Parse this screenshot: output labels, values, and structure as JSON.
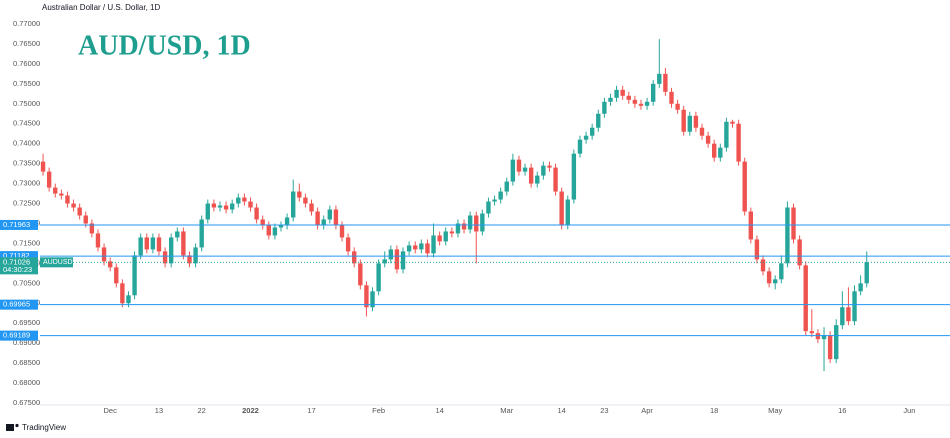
{
  "chart_data": {
    "type": "candlestick",
    "title": "Australian Dollar / U.S. Dollar, 1D",
    "annotation": "AUD/USD, 1D",
    "footer": "TradingView",
    "up_color": "#26a69a",
    "down_color": "#ef5350",
    "level_color": "#2196f3",
    "ylim": [
      0.675,
      0.77
    ],
    "yticks": [
      {
        "value": 0.675,
        "label": "0.67500"
      },
      {
        "value": 0.68,
        "label": "0.68000"
      },
      {
        "value": 0.685,
        "label": "0.68500"
      },
      {
        "value": 0.69,
        "label": "0.69000"
      },
      {
        "value": 0.695,
        "label": "0.69500"
      },
      {
        "value": 0.7,
        "label": "0.70000"
      },
      {
        "value": 0.705,
        "label": "0.70500"
      },
      {
        "value": 0.71,
        "label": "0.71000"
      },
      {
        "value": 0.715,
        "label": "0.71500"
      },
      {
        "value": 0.72,
        "label": "0.72000"
      },
      {
        "value": 0.725,
        "label": "0.72500"
      },
      {
        "value": 0.73,
        "label": "0.73000"
      },
      {
        "value": 0.735,
        "label": "0.73500"
      },
      {
        "value": 0.74,
        "label": "0.74000"
      },
      {
        "value": 0.745,
        "label": "0.74500"
      },
      {
        "value": 0.75,
        "label": "0.75000"
      },
      {
        "value": 0.755,
        "label": "0.75500"
      },
      {
        "value": 0.76,
        "label": "0.76000"
      },
      {
        "value": 0.765,
        "label": "0.76500"
      },
      {
        "value": 0.77,
        "label": "0.77000"
      }
    ],
    "levels": [
      {
        "value": 0.71963,
        "label": "0.71963"
      },
      {
        "value": 0.71182,
        "label": "0.71182"
      },
      {
        "value": 0.69965,
        "label": "0.69965"
      },
      {
        "value": 0.69189,
        "label": "0.69189"
      }
    ],
    "last_price": {
      "value": 0.71026,
      "label": "0.71026"
    },
    "symbol": "AUDUSD",
    "countdown": "04:30:23",
    "categories": [
      null,
      null,
      null,
      null,
      null,
      null,
      null,
      null,
      null,
      null,
      null,
      "Dec",
      null,
      null,
      null,
      null,
      null,
      null,
      null,
      "13",
      null,
      null,
      null,
      null,
      null,
      null,
      "22",
      null,
      null,
      null,
      null,
      null,
      null,
      null,
      "2022",
      null,
      null,
      null,
      null,
      null,
      null,
      null,
      null,
      null,
      "17",
      null,
      null,
      null,
      null,
      null,
      null,
      null,
      null,
      null,
      null,
      "Feb",
      null,
      null,
      null,
      null,
      null,
      null,
      null,
      null,
      null,
      "14",
      null,
      null,
      null,
      null,
      null,
      null,
      null,
      null,
      null,
      null,
      "Mar",
      null,
      null,
      null,
      null,
      null,
      null,
      null,
      null,
      "14",
      null,
      null,
      null,
      null,
      null,
      null,
      "23",
      null,
      null,
      null,
      null,
      null,
      null,
      "Apr",
      null,
      null,
      null,
      null,
      null,
      null,
      null,
      null,
      null,
      null,
      "18",
      null,
      null,
      null,
      null,
      null,
      null,
      null,
      null,
      null,
      "May",
      null,
      null,
      null,
      null,
      null,
      null,
      null,
      null,
      null,
      null,
      "16",
      null,
      null,
      null,
      null,
      null,
      null,
      null,
      null,
      null,
      null,
      "Jun",
      null,
      null,
      null,
      null,
      null
    ],
    "open": [
      0.7355,
      0.733,
      0.729,
      0.7275,
      0.727,
      0.725,
      0.724,
      0.722,
      0.72,
      0.7175,
      0.714,
      0.7105,
      0.709,
      0.705,
      0.7,
      0.702,
      0.712,
      0.7165,
      0.7135,
      0.7165,
      0.713,
      0.71,
      0.7165,
      0.718,
      0.712,
      0.71,
      0.714,
      0.721,
      0.725,
      0.724,
      0.7245,
      0.7235,
      0.725,
      0.7265,
      0.7255,
      0.724,
      0.721,
      0.7195,
      0.717,
      0.719,
      0.7195,
      0.7215,
      0.728,
      0.7265,
      0.725,
      0.723,
      0.7195,
      0.721,
      0.7235,
      0.7195,
      0.7165,
      0.713,
      0.71,
      0.7045,
      0.699,
      0.703,
      0.71,
      0.711,
      0.7135,
      0.7085,
      0.713,
      0.7145,
      0.7135,
      0.715,
      0.7125,
      0.717,
      0.7155,
      0.718,
      0.7175,
      0.72,
      0.7185,
      0.722,
      0.718,
      0.7225,
      0.7255,
      0.726,
      0.728,
      0.7305,
      0.736,
      0.733,
      0.734,
      0.73,
      0.732,
      0.7345,
      0.734,
      0.728,
      0.7195,
      0.726,
      0.7375,
      0.741,
      0.742,
      0.744,
      0.7475,
      0.7505,
      0.7515,
      0.7535,
      0.752,
      0.751,
      0.75,
      0.7495,
      0.7505,
      0.755,
      0.7575,
      0.753,
      0.75,
      0.7485,
      0.743,
      0.747,
      0.744,
      0.742,
      0.74,
      0.7365,
      0.739,
      0.7455,
      0.745,
      0.7355,
      0.723,
      0.716,
      0.711,
      0.708,
      0.705,
      0.706,
      0.71,
      0.724,
      0.716,
      0.7095,
      0.693,
      0.6925,
      0.691,
      0.692,
      0.686,
      0.6945,
      0.699,
      0.6955,
      0.703,
      0.705,
      null,
      null,
      null,
      null,
      null,
      null,
      null,
      null,
      null,
      null,
      null,
      null
    ],
    "high": [
      0.7375,
      0.734,
      0.73,
      0.7285,
      0.728,
      0.726,
      0.725,
      0.723,
      0.721,
      0.7185,
      0.715,
      0.7115,
      0.71,
      0.706,
      0.703,
      0.713,
      0.7175,
      0.7175,
      0.7175,
      0.7175,
      0.714,
      0.7175,
      0.719,
      0.719,
      0.713,
      0.715,
      0.722,
      0.726,
      0.726,
      0.7255,
      0.7255,
      0.726,
      0.7275,
      0.7275,
      0.7265,
      0.725,
      0.722,
      0.7205,
      0.72,
      0.7205,
      0.7225,
      0.731,
      0.73,
      0.7275,
      0.726,
      0.724,
      0.722,
      0.7245,
      0.7245,
      0.7205,
      0.7175,
      0.714,
      0.711,
      0.7055,
      0.704,
      0.711,
      0.713,
      0.7145,
      0.7145,
      0.714,
      0.7155,
      0.7155,
      0.716,
      0.716,
      0.72,
      0.718,
      0.719,
      0.719,
      0.721,
      0.721,
      0.723,
      0.723,
      0.7235,
      0.7265,
      0.727,
      0.729,
      0.7315,
      0.7375,
      0.737,
      0.735,
      0.735,
      0.733,
      0.7355,
      0.7355,
      0.735,
      0.729,
      0.727,
      0.7385,
      0.742,
      0.743,
      0.745,
      0.7485,
      0.7515,
      0.7525,
      0.7545,
      0.7545,
      0.753,
      0.752,
      0.751,
      0.7515,
      0.756,
      0.7662,
      0.759,
      0.754,
      0.751,
      0.7495,
      0.748,
      0.748,
      0.745,
      0.743,
      0.741,
      0.74,
      0.7465,
      0.746,
      0.746,
      0.7365,
      0.724,
      0.717,
      0.712,
      0.709,
      0.707,
      0.712,
      0.7255,
      0.725,
      0.717,
      0.7105,
      0.6985,
      0.6935,
      0.694,
      0.693,
      0.696,
      0.703,
      0.704,
      0.7045,
      0.707,
      0.713,
      null,
      null,
      null,
      null,
      null,
      null,
      null,
      null,
      null,
      null,
      null,
      null
    ],
    "low": [
      0.732,
      0.728,
      0.7265,
      0.726,
      0.724,
      0.723,
      0.721,
      0.719,
      0.7165,
      0.713,
      0.7095,
      0.708,
      0.704,
      0.699,
      0.699,
      0.701,
      0.711,
      0.7125,
      0.7125,
      0.712,
      0.709,
      0.709,
      0.7155,
      0.711,
      0.709,
      0.709,
      0.713,
      0.72,
      0.723,
      0.723,
      0.7225,
      0.7225,
      0.724,
      0.7245,
      0.723,
      0.72,
      0.7185,
      0.716,
      0.716,
      0.718,
      0.7185,
      0.7205,
      0.7255,
      0.724,
      0.722,
      0.7185,
      0.7185,
      0.72,
      0.7185,
      0.7155,
      0.712,
      0.709,
      0.7035,
      0.6967,
      0.698,
      0.702,
      0.709,
      0.71,
      0.7075,
      0.7075,
      0.712,
      0.7125,
      0.7125,
      0.7115,
      0.7115,
      0.7145,
      0.7145,
      0.7165,
      0.7165,
      0.7175,
      0.7175,
      0.71,
      0.717,
      0.7215,
      0.7245,
      0.725,
      0.727,
      0.7295,
      0.732,
      0.732,
      0.729,
      0.729,
      0.731,
      0.733,
      0.727,
      0.7185,
      0.7185,
      0.725,
      0.7365,
      0.74,
      0.741,
      0.743,
      0.7465,
      0.7495,
      0.7505,
      0.751,
      0.75,
      0.749,
      0.7485,
      0.7485,
      0.7495,
      0.754,
      0.752,
      0.749,
      0.7475,
      0.742,
      0.742,
      0.743,
      0.741,
      0.739,
      0.7355,
      0.7355,
      0.738,
      0.744,
      0.7345,
      0.722,
      0.715,
      0.71,
      0.707,
      0.704,
      0.7035,
      0.705,
      0.709,
      0.715,
      0.7085,
      0.692,
      0.6915,
      0.69,
      0.683,
      0.685,
      0.685,
      0.6935,
      0.6945,
      0.6945,
      0.702,
      0.704,
      null,
      null,
      null,
      null,
      null,
      null,
      null,
      null,
      null,
      null,
      null,
      null
    ],
    "close": [
      0.733,
      0.729,
      0.7275,
      0.727,
      0.725,
      0.724,
      0.722,
      0.72,
      0.7175,
      0.714,
      0.7105,
      0.709,
      0.705,
      0.7,
      0.702,
      0.712,
      0.7165,
      0.7135,
      0.7165,
      0.713,
      0.71,
      0.7165,
      0.718,
      0.712,
      0.71,
      0.714,
      0.721,
      0.725,
      0.724,
      0.7245,
      0.7235,
      0.725,
      0.7265,
      0.7255,
      0.724,
      0.721,
      0.7195,
      0.717,
      0.719,
      0.7195,
      0.7215,
      0.728,
      0.7265,
      0.725,
      0.723,
      0.7195,
      0.721,
      0.7235,
      0.7195,
      0.7165,
      0.713,
      0.71,
      0.7045,
      0.699,
      0.703,
      0.71,
      0.711,
      0.7135,
      0.7085,
      0.713,
      0.7145,
      0.7135,
      0.715,
      0.7125,
      0.717,
      0.7155,
      0.718,
      0.7175,
      0.72,
      0.7185,
      0.722,
      0.718,
      0.7225,
      0.7255,
      0.726,
      0.728,
      0.7305,
      0.736,
      0.733,
      0.734,
      0.73,
      0.732,
      0.7345,
      0.734,
      0.728,
      0.7195,
      0.726,
      0.7375,
      0.741,
      0.742,
      0.744,
      0.7475,
      0.7505,
      0.7515,
      0.7535,
      0.752,
      0.751,
      0.75,
      0.7495,
      0.7505,
      0.755,
      0.7575,
      0.753,
      0.75,
      0.7485,
      0.743,
      0.747,
      0.744,
      0.742,
      0.74,
      0.7365,
      0.739,
      0.7455,
      0.745,
      0.7355,
      0.723,
      0.716,
      0.711,
      0.708,
      0.705,
      0.706,
      0.71,
      0.724,
      0.716,
      0.7095,
      0.693,
      0.6925,
      0.691,
      0.692,
      0.686,
      0.6945,
      0.699,
      0.6955,
      0.703,
      0.705,
      0.7103,
      null,
      null,
      null,
      null,
      null,
      null,
      null,
      null,
      null,
      null,
      null,
      null
    ]
  }
}
